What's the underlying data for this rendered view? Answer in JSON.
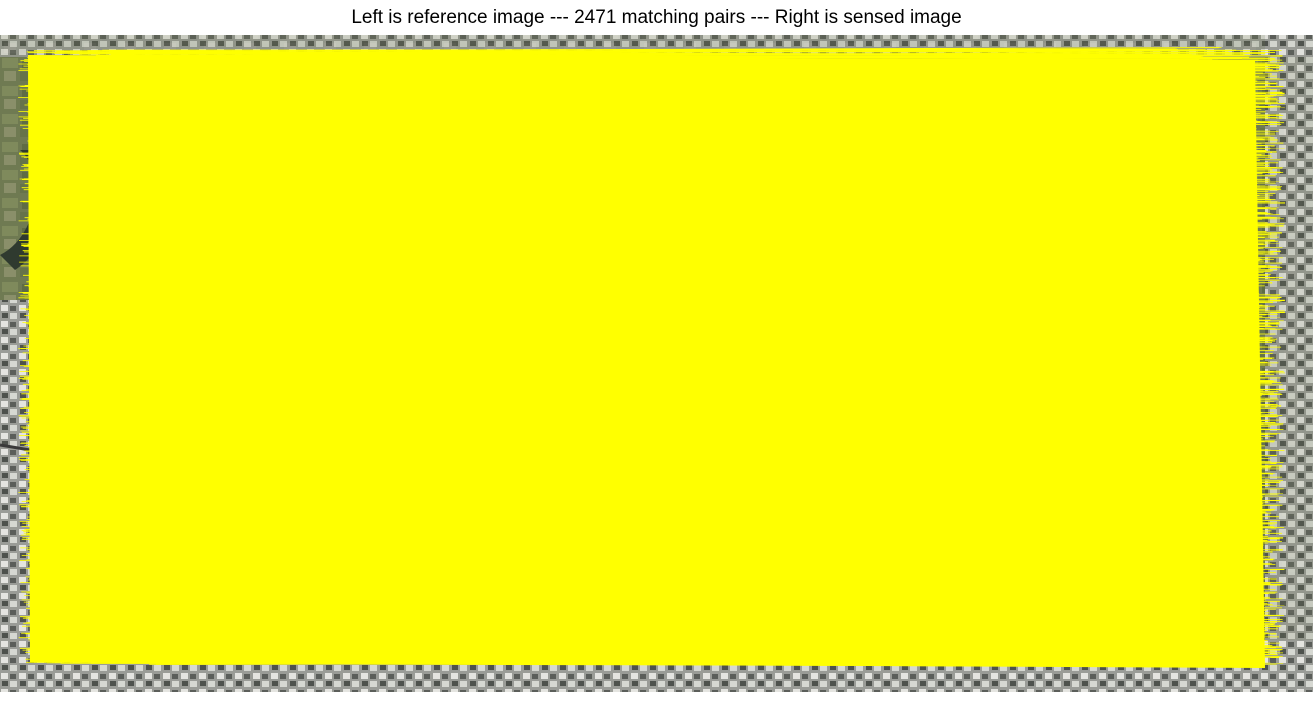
{
  "figure": {
    "title": "Left is reference image --- 2471 matching pairs --- Right is sensed image"
  },
  "colors": {
    "background": "#ffffff",
    "match_lines": "#ffff00",
    "title_text": "#000000"
  },
  "panels": [
    {
      "role": "reference image"
    },
    {
      "role": "sensed image"
    }
  ],
  "matches": {
    "count": 2471
  }
}
